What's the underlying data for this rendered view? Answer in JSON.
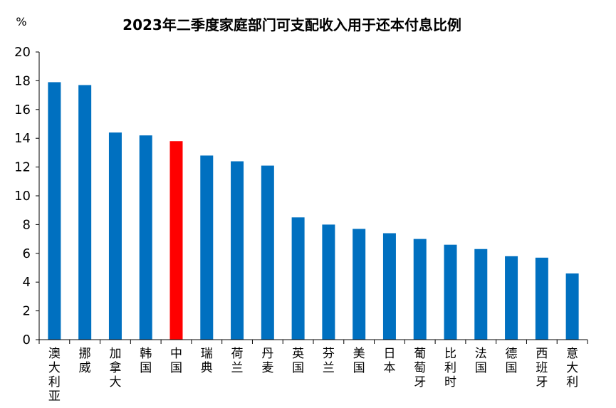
{
  "chart_data": {
    "type": "bar",
    "title": "2023年二季度家庭部门可支配收入用于还本付息比例",
    "unit_label": "%",
    "categories": [
      "澳大利亚",
      "挪威",
      "加拿大",
      "韩国",
      "中国",
      "瑞典",
      "荷兰",
      "丹麦",
      "英国",
      "芬兰",
      "美国",
      "日本",
      "葡萄牙",
      "比利时",
      "法国",
      "德国",
      "西班牙",
      "意大利"
    ],
    "values": [
      17.9,
      17.7,
      14.4,
      14.2,
      13.8,
      12.8,
      12.4,
      12.1,
      8.5,
      8.0,
      7.7,
      7.4,
      7.0,
      6.6,
      6.3,
      5.8,
      5.7,
      4.6
    ],
    "highlight_category": "中国",
    "ylim": [
      0,
      20
    ],
    "yticks": [
      0,
      2,
      4,
      6,
      8,
      10,
      12,
      14,
      16,
      18,
      20
    ],
    "grid": false,
    "legend": "none",
    "colors": {
      "bar": "#0070C0",
      "highlight": "#FF0000",
      "axis": "#000000"
    }
  }
}
